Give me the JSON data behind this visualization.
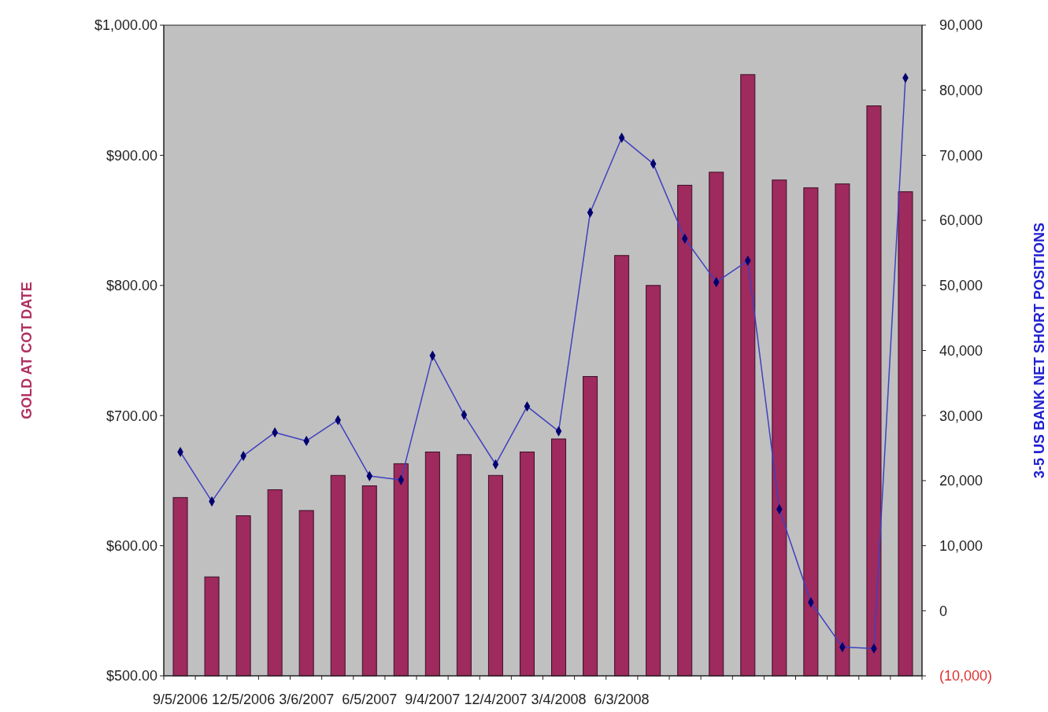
{
  "chart_data": {
    "type": "bar",
    "ylabel": "GOLD AT COT DATE",
    "y2label": "3-5 US BANK NET SHORT POSITIONS",
    "categories": [
      "9/5/2006",
      null,
      "12/5/2006",
      null,
      "3/6/2007",
      null,
      "6/5/2007",
      null,
      "9/4/2007",
      null,
      "12/4/2007",
      null,
      "3/4/2008",
      null,
      "6/3/2008",
      null,
      null,
      null,
      null,
      null,
      null,
      null,
      null,
      null
    ],
    "series": [
      {
        "color": "#9e2a5e",
        "values": [
          637,
          576,
          623,
          643,
          627,
          654,
          646,
          663,
          672,
          670,
          654,
          672,
          682,
          730,
          823,
          800,
          877,
          887,
          962,
          881,
          875,
          878,
          938,
          872
        ]
      },
      {
        "type": "line",
        "axis": "y2",
        "color": "#4040c0",
        "marker": "diamond",
        "values": [
          24400,
          16800,
          23800,
          27400,
          26100,
          29300,
          20700,
          20100,
          39200,
          30100,
          22500,
          31400,
          27600,
          61200,
          72700,
          68700,
          57200,
          50500,
          53800,
          15600,
          1300,
          -5600,
          -5800,
          81900
        ]
      }
    ],
    "ylim": [
      500,
      1000
    ],
    "yticks": [
      {
        "value": 500,
        "label": "$500.00"
      },
      {
        "value": 600,
        "label": "$600.00"
      },
      {
        "value": 700,
        "label": "$700.00"
      },
      {
        "value": 800,
        "label": "$800.00"
      },
      {
        "value": 900,
        "label": "$900.00"
      },
      {
        "value": 1000,
        "label": "$1,000.00"
      }
    ],
    "y2lim": [
      -10000,
      90000
    ],
    "y2ticks": [
      {
        "value": -10000,
        "label": "(10,000)"
      },
      0,
      {
        "value": 10000,
        "label": "10,000"
      },
      {
        "value": 20000,
        "label": "20,000"
      },
      {
        "value": 30000,
        "label": "30,000"
      },
      {
        "value": 40000,
        "label": "40,000"
      },
      {
        "value": 50000,
        "label": "50,000"
      },
      {
        "value": 60000,
        "label": "60,000"
      },
      {
        "value": 70000,
        "label": "70,000"
      },
      {
        "value": 80000,
        "label": "80,000"
      },
      {
        "value": 90000,
        "label": "90,000"
      }
    ],
    "grid": false
  }
}
